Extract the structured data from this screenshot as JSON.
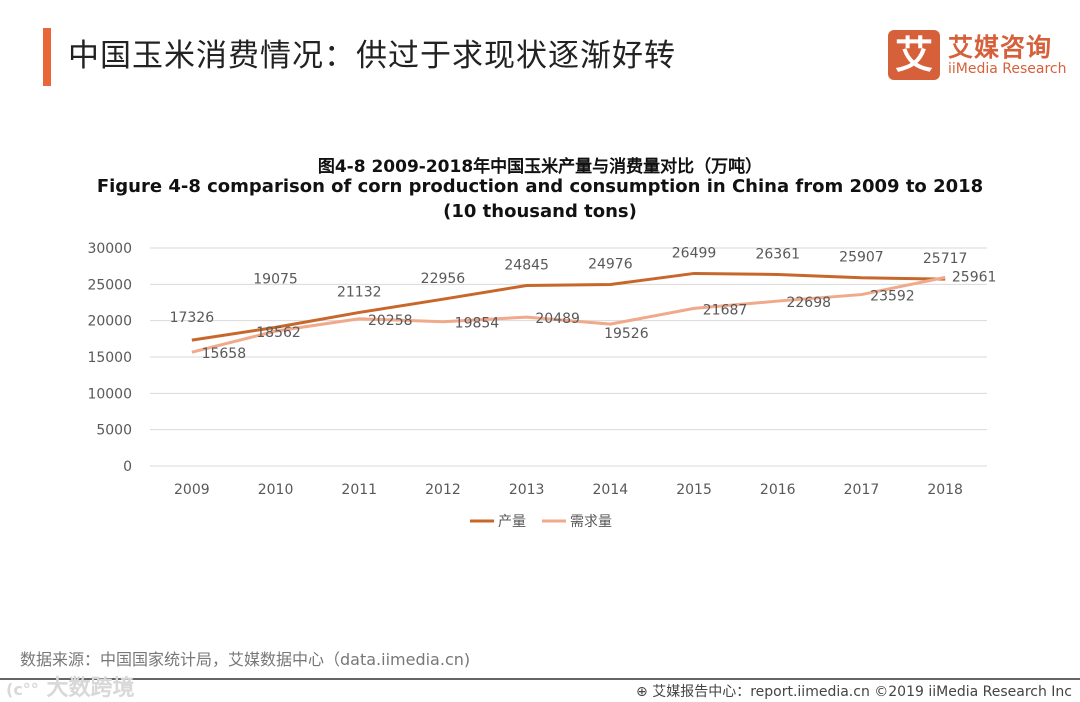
{
  "header": {
    "title": "中国玉米消费情况：供过于求现状逐渐好转"
  },
  "logo": {
    "mark": "艾",
    "cn": "艾媒咨询",
    "en": "iiMedia Research"
  },
  "chart_data": {
    "type": "line",
    "title": "图4-8 2009-2018年中国玉米产量与消费量对比（万吨）",
    "subtitle": "Figure 4-8 comparison  of corn production and consumption  in China from 2009 to 2018",
    "subtitle2": "(10 thousand  tons)",
    "x": [
      "2009",
      "2010",
      "2011",
      "2012",
      "2013",
      "2014",
      "2015",
      "2016",
      "2017",
      "2018"
    ],
    "yticks": [
      "0",
      "5000",
      "10000",
      "15000",
      "20000",
      "25000",
      "30000"
    ],
    "ylim": [
      0,
      30000
    ],
    "grid": true,
    "legend": "bottom",
    "series": [
      {
        "name": "产量",
        "color": "#c8672c",
        "values": [
          17326,
          19075,
          21132,
          22956,
          24845,
          24976,
          26499,
          26361,
          25907,
          25717
        ]
      },
      {
        "name": "需求量",
        "color": "#f0a98a",
        "values": [
          15658,
          18562,
          20258,
          19854,
          20489,
          19526,
          21687,
          22698,
          23592,
          25961
        ]
      }
    ]
  },
  "source": "数据来源：中国国家统计局，艾媒数据中心（data.iimedia.cn)",
  "watermark": "大数跨境",
  "footer": "艾媒报告中心：report.iimedia.cn  ©2019  iiMedia Research  Inc"
}
